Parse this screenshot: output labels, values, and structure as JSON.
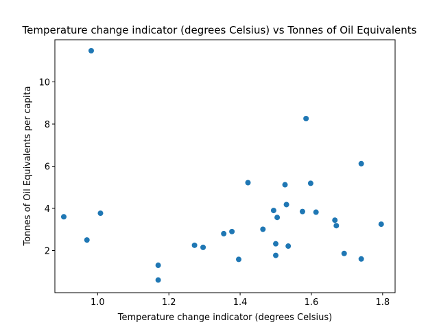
{
  "chart_data": {
    "type": "scatter",
    "title": "Temperature change indicator (degrees Celsius) vs Tonnes of Oil Equivalents",
    "xlabel": "Temperature change indicator (degrees Celsius)",
    "ylabel": "Tonnes of Oil Equivalents per capita",
    "xlim": [
      0.88,
      1.835
    ],
    "ylim": [
      0.0,
      12.0
    ],
    "xticks": [
      "1.0",
      "1.2",
      "1.4",
      "1.6",
      "1.8"
    ],
    "yticks": [
      "2",
      "4",
      "6",
      "8",
      "10"
    ],
    "grid": false,
    "marker_color": "#1f77b4",
    "points": [
      {
        "x": 0.905,
        "y": 3.6
      },
      {
        "x": 0.97,
        "y": 2.5
      },
      {
        "x": 0.982,
        "y": 11.48
      },
      {
        "x": 1.008,
        "y": 3.77
      },
      {
        "x": 1.17,
        "y": 1.3
      },
      {
        "x": 1.17,
        "y": 0.6
      },
      {
        "x": 1.272,
        "y": 2.25
      },
      {
        "x": 1.296,
        "y": 2.15
      },
      {
        "x": 1.354,
        "y": 2.8
      },
      {
        "x": 1.377,
        "y": 2.9
      },
      {
        "x": 1.396,
        "y": 1.58
      },
      {
        "x": 1.422,
        "y": 5.22
      },
      {
        "x": 1.464,
        "y": 3.01
      },
      {
        "x": 1.494,
        "y": 3.9
      },
      {
        "x": 1.5,
        "y": 2.32
      },
      {
        "x": 1.5,
        "y": 1.77
      },
      {
        "x": 1.504,
        "y": 3.57
      },
      {
        "x": 1.526,
        "y": 5.12
      },
      {
        "x": 1.53,
        "y": 4.18
      },
      {
        "x": 1.535,
        "y": 2.21
      },
      {
        "x": 1.575,
        "y": 3.85
      },
      {
        "x": 1.585,
        "y": 8.26
      },
      {
        "x": 1.598,
        "y": 5.19
      },
      {
        "x": 1.613,
        "y": 3.82
      },
      {
        "x": 1.666,
        "y": 3.44
      },
      {
        "x": 1.67,
        "y": 3.18
      },
      {
        "x": 1.692,
        "y": 1.86
      },
      {
        "x": 1.74,
        "y": 6.12
      },
      {
        "x": 1.74,
        "y": 1.6
      },
      {
        "x": 1.796,
        "y": 3.25
      }
    ]
  }
}
